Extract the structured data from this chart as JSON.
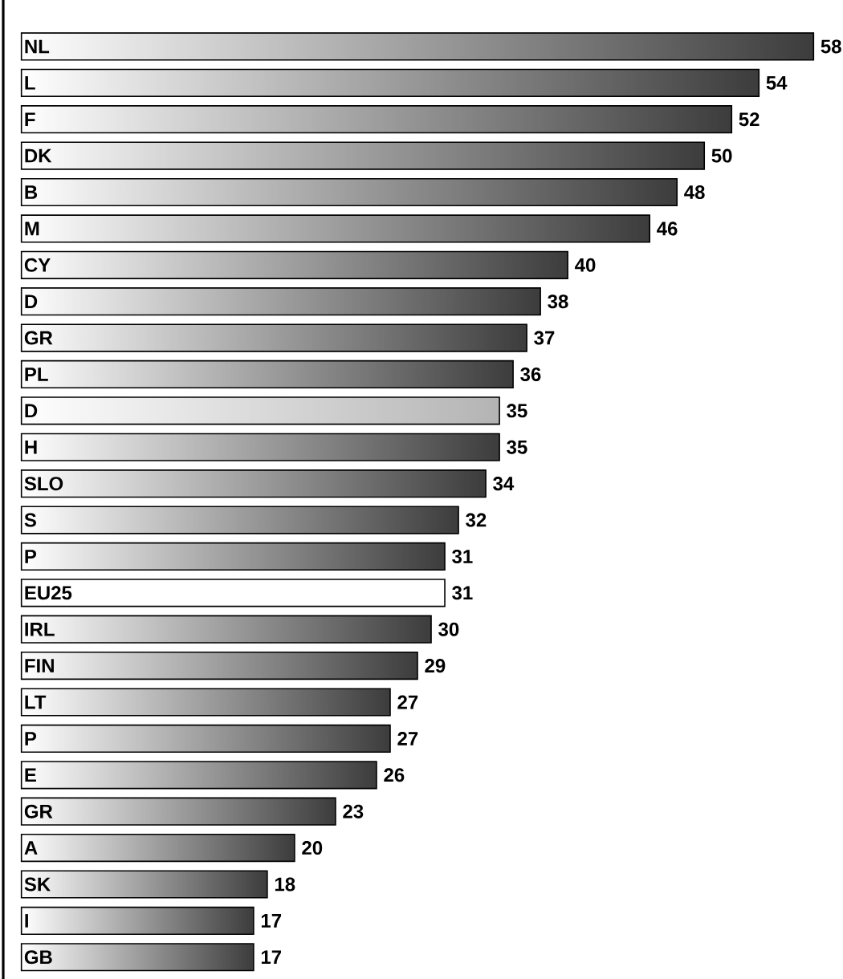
{
  "chart_data": {
    "type": "bar",
    "orientation": "horizontal",
    "data_labels": true,
    "categories": [
      "NL",
      "L",
      "F",
      "DK",
      "B",
      "M",
      "CY",
      "D",
      "GR",
      "PL",
      "D",
      "H",
      "SLO",
      "S",
      "P",
      "EU25",
      "IRL",
      "FIN",
      "LT",
      "P",
      "E",
      "GR",
      "A",
      "SK",
      "I",
      "GB"
    ],
    "values": [
      58,
      54,
      52,
      50,
      48,
      46,
      40,
      38,
      37,
      36,
      35,
      35,
      34,
      32,
      31,
      31,
      30,
      29,
      27,
      27,
      26,
      23,
      20,
      18,
      17,
      17
    ],
    "colors": [
      "#3c3c3c",
      "#3c3c3c",
      "#3c3c3c",
      "#3c3c3c",
      "#3c3c3c",
      "#3c3c3c",
      "#3c3c3c",
      "#3c3c3c",
      "#3c3c3c",
      "#3c3c3c",
      "#b4b4b4",
      "#3c3c3c",
      "#3c3c3c",
      "#3c3c3c",
      "#3c3c3c",
      "#ffffff",
      "#3c3c3c",
      "#3c3c3c",
      "#3c3c3c",
      "#3c3c3c",
      "#3c3c3c",
      "#3c3c3c",
      "#3c3c3c",
      "#3c3c3c",
      "#3c3c3c",
      "#3c3c3c"
    ]
  }
}
